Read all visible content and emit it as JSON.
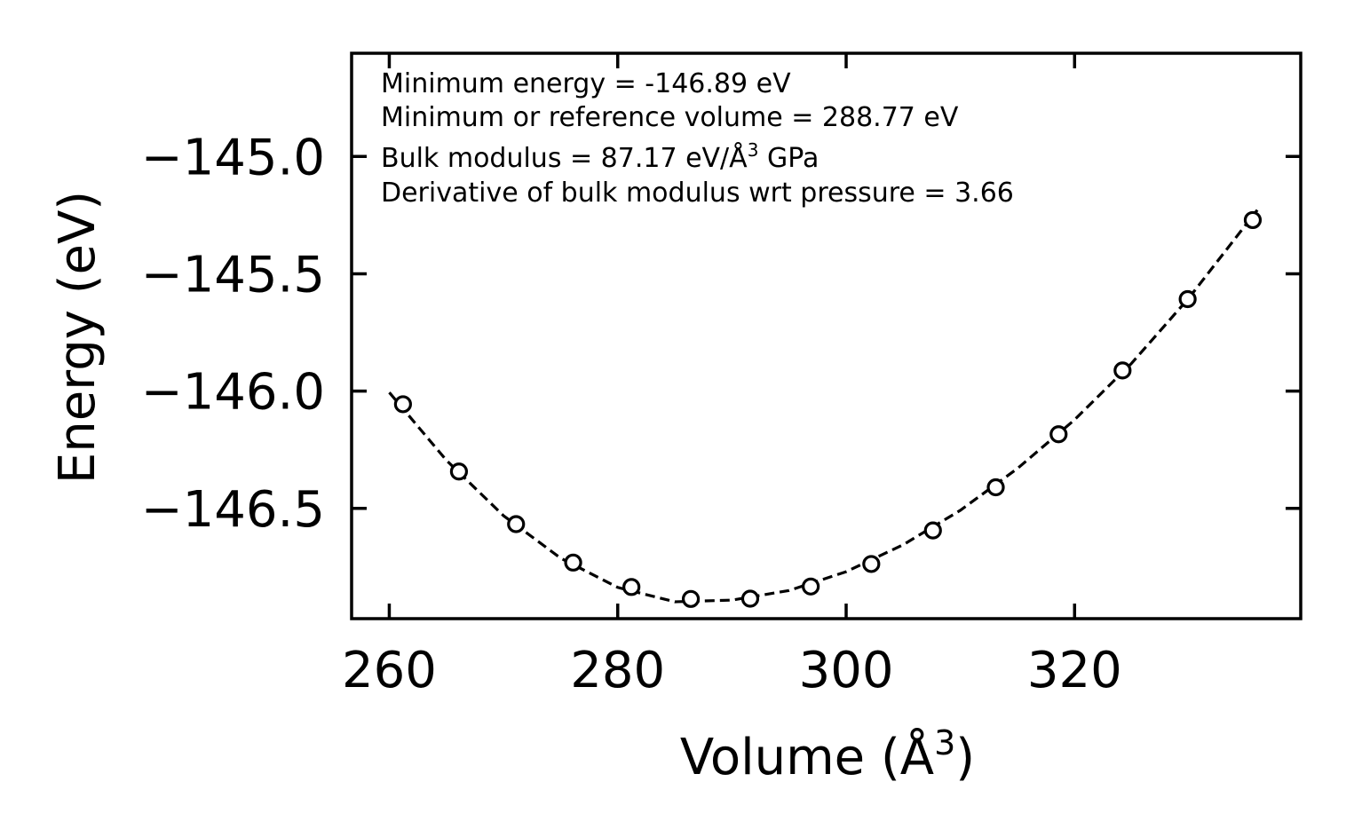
{
  "chart_data": {
    "type": "scatter",
    "title": "",
    "xlabel": "Volume (Å",
    "xlabel_sup": "3",
    "xlabel_close": ")",
    "ylabel": "Energy (eV)",
    "xlim": [
      256.7,
      339.8
    ],
    "ylim": [
      -146.97,
      -144.56
    ],
    "xticks": [
      260,
      280,
      300,
      320
    ],
    "xtick_labels": [
      "260",
      "280",
      "300",
      "320"
    ],
    "yticks": [
      -145.0,
      -145.5,
      -146.0,
      -146.5
    ],
    "ytick_labels": [
      "−145.0",
      "−145.5",
      "−146.0",
      "−146.5"
    ],
    "grid": false,
    "legend": "none",
    "series": [
      {
        "name": "data",
        "style": "open-circle",
        "color": "#000000",
        "x": [
          261.2,
          266.1,
          271.1,
          276.1,
          281.2,
          286.4,
          291.6,
          296.9,
          302.2,
          307.6,
          313.1,
          318.6,
          324.2,
          329.9,
          335.6
        ],
        "y": [
          -146.056,
          -146.343,
          -146.567,
          -146.731,
          -146.835,
          -146.886,
          -146.885,
          -146.833,
          -146.737,
          -146.594,
          -146.41,
          -146.184,
          -145.912,
          -145.608,
          -145.271
        ]
      },
      {
        "name": "fit",
        "style": "dashed-line",
        "color": "#000000",
        "x": [
          260.0,
          265.0,
          270.0,
          275.0,
          280.0,
          285.0,
          290.0,
          295.0,
          300.0,
          305.0,
          310.0,
          315.0,
          320.0,
          325.0,
          330.0,
          336.0
        ],
        "y": [
          -146.006,
          -146.295,
          -146.531,
          -146.712,
          -146.837,
          -146.898,
          -146.891,
          -146.85,
          -146.77,
          -146.655,
          -146.508,
          -146.33,
          -146.122,
          -145.881,
          -145.604,
          -145.228
        ]
      }
    ],
    "annotations": [
      {
        "id": "min-energy",
        "text": "Minimum energy = -146.89 eV"
      },
      {
        "id": "min-volume",
        "text": "Minimum or reference volume = 288.77 eV"
      },
      {
        "id": "bulk-modulus",
        "text_before": "Bulk modulus = 87.17 eV/Å",
        "sup": "3",
        "text_after": " GPa"
      },
      {
        "id": "bulk-derivative",
        "text": "Derivative of bulk modulus wrt pressure = 3.66"
      }
    ]
  }
}
